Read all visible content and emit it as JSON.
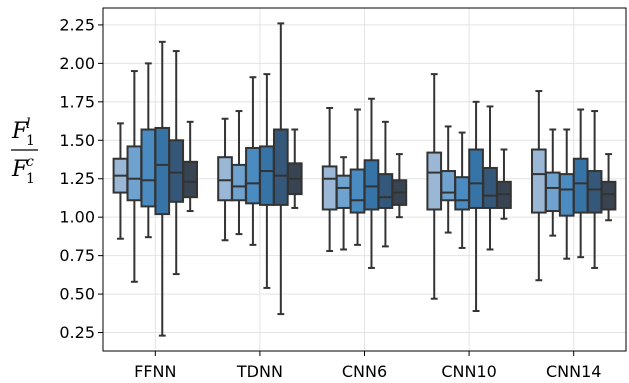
{
  "chart_data": {
    "type": "box",
    "categories": [
      "FFNN",
      "TDNN",
      "CNN6",
      "CNN10",
      "CNN14"
    ],
    "ylim": [
      0.13,
      2.36
    ],
    "yticks": [
      "0.25",
      "0.50",
      "0.75",
      "1.00",
      "1.25",
      "1.50",
      "1.75",
      "2.00",
      "2.25"
    ],
    "ylabel": {
      "num_base": "F",
      "num_sup": "l",
      "num_sub": "1",
      "den_base": "F",
      "den_sup": "c",
      "den_sub": "1"
    },
    "grid": true,
    "colors": [
      "#9ab7d6",
      "#6fa2cf",
      "#4a8bc1",
      "#3674a8",
      "#35587a",
      "#384452"
    ],
    "groups": [
      {
        "category": "FFNN",
        "boxes": [
          {
            "whislo": 0.86,
            "q1": 1.16,
            "med": 1.27,
            "q3": 1.38,
            "whishi": 1.61
          },
          {
            "whislo": 0.58,
            "q1": 1.11,
            "med": 1.25,
            "q3": 1.46,
            "whishi": 1.95
          },
          {
            "whislo": 0.87,
            "q1": 1.07,
            "med": 1.24,
            "q3": 1.57,
            "whishi": 2.0
          },
          {
            "whislo": 0.23,
            "q1": 1.02,
            "med": 1.34,
            "q3": 1.58,
            "whishi": 2.14
          },
          {
            "whislo": 0.63,
            "q1": 1.1,
            "med": 1.29,
            "q3": 1.5,
            "whishi": 2.08
          },
          {
            "whislo": 1.04,
            "q1": 1.13,
            "med": 1.23,
            "q3": 1.36,
            "whishi": 1.62
          }
        ]
      },
      {
        "category": "TDNN",
        "boxes": [
          {
            "whislo": 0.85,
            "q1": 1.11,
            "med": 1.24,
            "q3": 1.39,
            "whishi": 1.64
          },
          {
            "whislo": 0.89,
            "q1": 1.11,
            "med": 1.2,
            "q3": 1.34,
            "whishi": 1.69
          },
          {
            "whislo": 0.82,
            "q1": 1.09,
            "med": 1.22,
            "q3": 1.45,
            "whishi": 1.91
          },
          {
            "whislo": 0.54,
            "q1": 1.08,
            "med": 1.3,
            "q3": 1.46,
            "whishi": 1.93
          },
          {
            "whislo": 0.37,
            "q1": 1.08,
            "med": 1.27,
            "q3": 1.57,
            "whishi": 2.26
          },
          {
            "whislo": 1.06,
            "q1": 1.15,
            "med": 1.25,
            "q3": 1.35,
            "whishi": 1.57
          }
        ]
      },
      {
        "category": "CNN6",
        "boxes": [
          {
            "whislo": 0.78,
            "q1": 1.05,
            "med": 1.25,
            "q3": 1.33,
            "whishi": 1.71
          },
          {
            "whislo": 0.79,
            "q1": 1.06,
            "med": 1.19,
            "q3": 1.27,
            "whishi": 1.39
          },
          {
            "whislo": 0.82,
            "q1": 1.03,
            "med": 1.11,
            "q3": 1.31,
            "whishi": 1.7
          },
          {
            "whislo": 0.67,
            "q1": 1.05,
            "med": 1.2,
            "q3": 1.37,
            "whishi": 1.77
          },
          {
            "whislo": 0.81,
            "q1": 1.06,
            "med": 1.13,
            "q3": 1.28,
            "whishi": 1.62
          },
          {
            "whislo": 1.0,
            "q1": 1.08,
            "med": 1.16,
            "q3": 1.24,
            "whishi": 1.41
          }
        ]
      },
      {
        "category": "CNN10",
        "boxes": [
          {
            "whislo": 0.47,
            "q1": 1.05,
            "med": 1.29,
            "q3": 1.42,
            "whishi": 1.93
          },
          {
            "whislo": 0.9,
            "q1": 1.11,
            "med": 1.16,
            "q3": 1.3,
            "whishi": 1.59
          },
          {
            "whislo": 0.8,
            "q1": 1.05,
            "med": 1.11,
            "q3": 1.26,
            "whishi": 1.55
          },
          {
            "whislo": 0.39,
            "q1": 1.06,
            "med": 1.22,
            "q3": 1.44,
            "whishi": 1.75
          },
          {
            "whislo": 0.79,
            "q1": 1.06,
            "med": 1.14,
            "q3": 1.32,
            "whishi": 1.72
          },
          {
            "whislo": 0.99,
            "q1": 1.06,
            "med": 1.15,
            "q3": 1.23,
            "whishi": 1.44
          }
        ]
      },
      {
        "category": "CNN14",
        "boxes": [
          {
            "whislo": 0.59,
            "q1": 1.03,
            "med": 1.28,
            "q3": 1.44,
            "whishi": 1.82
          },
          {
            "whislo": 0.88,
            "q1": 1.04,
            "med": 1.19,
            "q3": 1.29,
            "whishi": 1.57
          },
          {
            "whislo": 0.73,
            "q1": 1.01,
            "med": 1.18,
            "q3": 1.28,
            "whishi": 1.57
          },
          {
            "whislo": 0.74,
            "q1": 1.03,
            "med": 1.22,
            "q3": 1.38,
            "whishi": 1.7
          },
          {
            "whislo": 0.67,
            "q1": 1.03,
            "med": 1.18,
            "q3": 1.3,
            "whishi": 1.69
          },
          {
            "whislo": 0.98,
            "q1": 1.05,
            "med": 1.15,
            "q3": 1.23,
            "whishi": 1.41
          }
        ]
      }
    ]
  }
}
